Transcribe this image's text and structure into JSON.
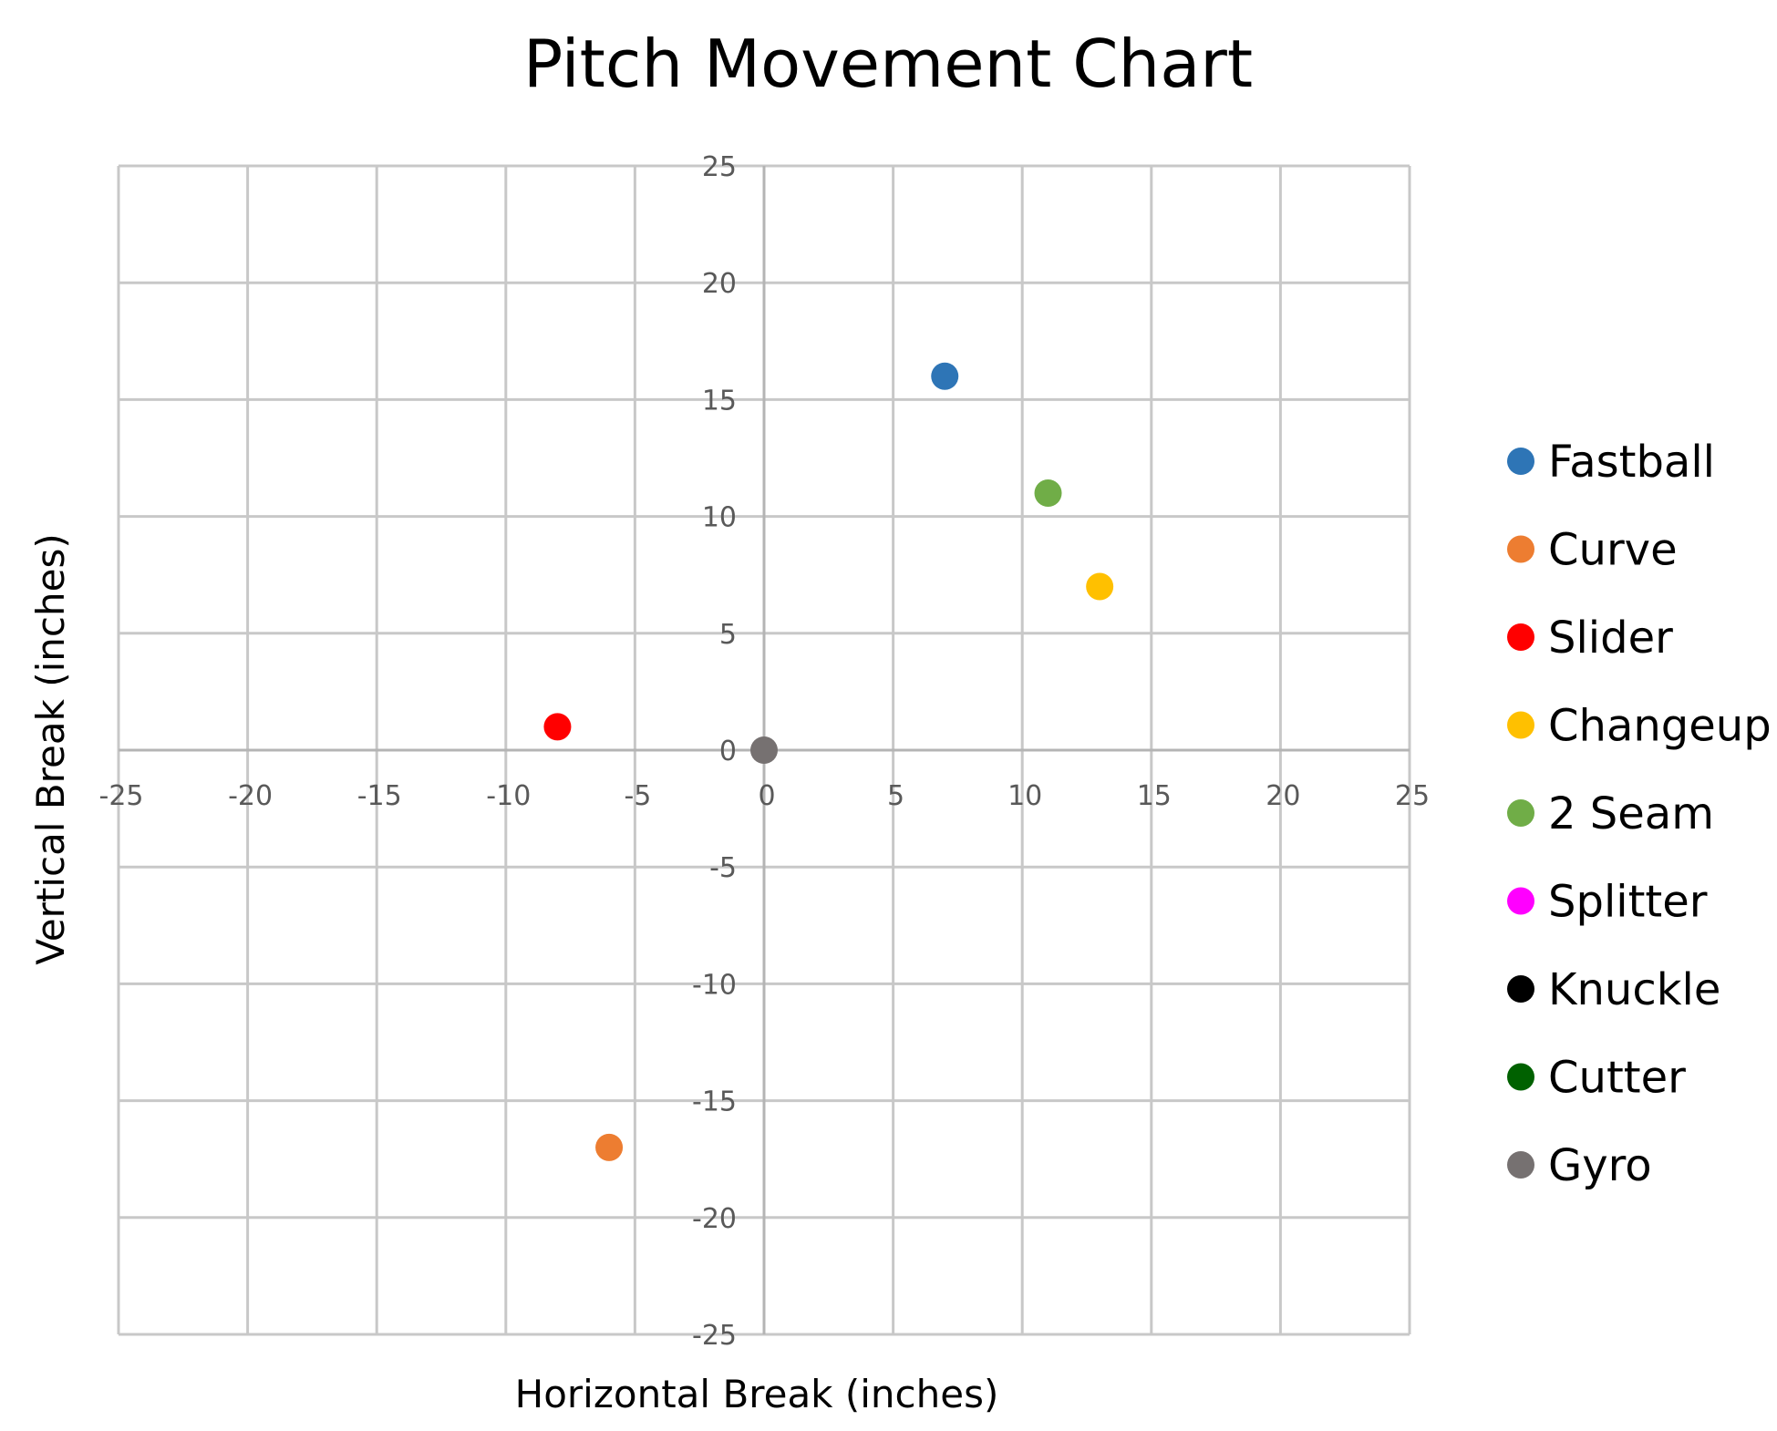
{
  "chart_data": {
    "type": "scatter",
    "title": "Pitch Movement Chart",
    "xlabel": "Horizontal Break (inches)",
    "ylabel": "Vertical Break (inches)",
    "xlim": [
      -25,
      25
    ],
    "ylim": [
      -25,
      25
    ],
    "x_ticks": [
      -25,
      -20,
      -15,
      -10,
      -5,
      0,
      5,
      10,
      15,
      20,
      25
    ],
    "y_ticks": [
      -25,
      -20,
      -15,
      -10,
      -5,
      0,
      5,
      10,
      15,
      20,
      25
    ],
    "grid": true,
    "legend_position": "right",
    "series": [
      {
        "name": "Fastball",
        "color": "#2E75B6",
        "points": [
          {
            "x": 7,
            "y": 16
          }
        ]
      },
      {
        "name": "Curve",
        "color": "#ED7D31",
        "points": [
          {
            "x": -6,
            "y": -17
          }
        ]
      },
      {
        "name": "Slider",
        "color": "#FF0000",
        "points": [
          {
            "x": -8,
            "y": 1
          }
        ]
      },
      {
        "name": "Changeup",
        "color": "#FFC000",
        "points": [
          {
            "x": 13,
            "y": 7
          }
        ]
      },
      {
        "name": "2 Seam",
        "color": "#70AD47",
        "points": [
          {
            "x": 11,
            "y": 11
          }
        ]
      },
      {
        "name": "Splitter",
        "color": "#FF00FF",
        "points": []
      },
      {
        "name": "Knuckle",
        "color": "#000000",
        "points": []
      },
      {
        "name": "Cutter",
        "color": "#006100",
        "points": []
      },
      {
        "name": "Gyro",
        "color": "#767171",
        "points": [
          {
            "x": 0,
            "y": 0
          }
        ]
      }
    ]
  }
}
